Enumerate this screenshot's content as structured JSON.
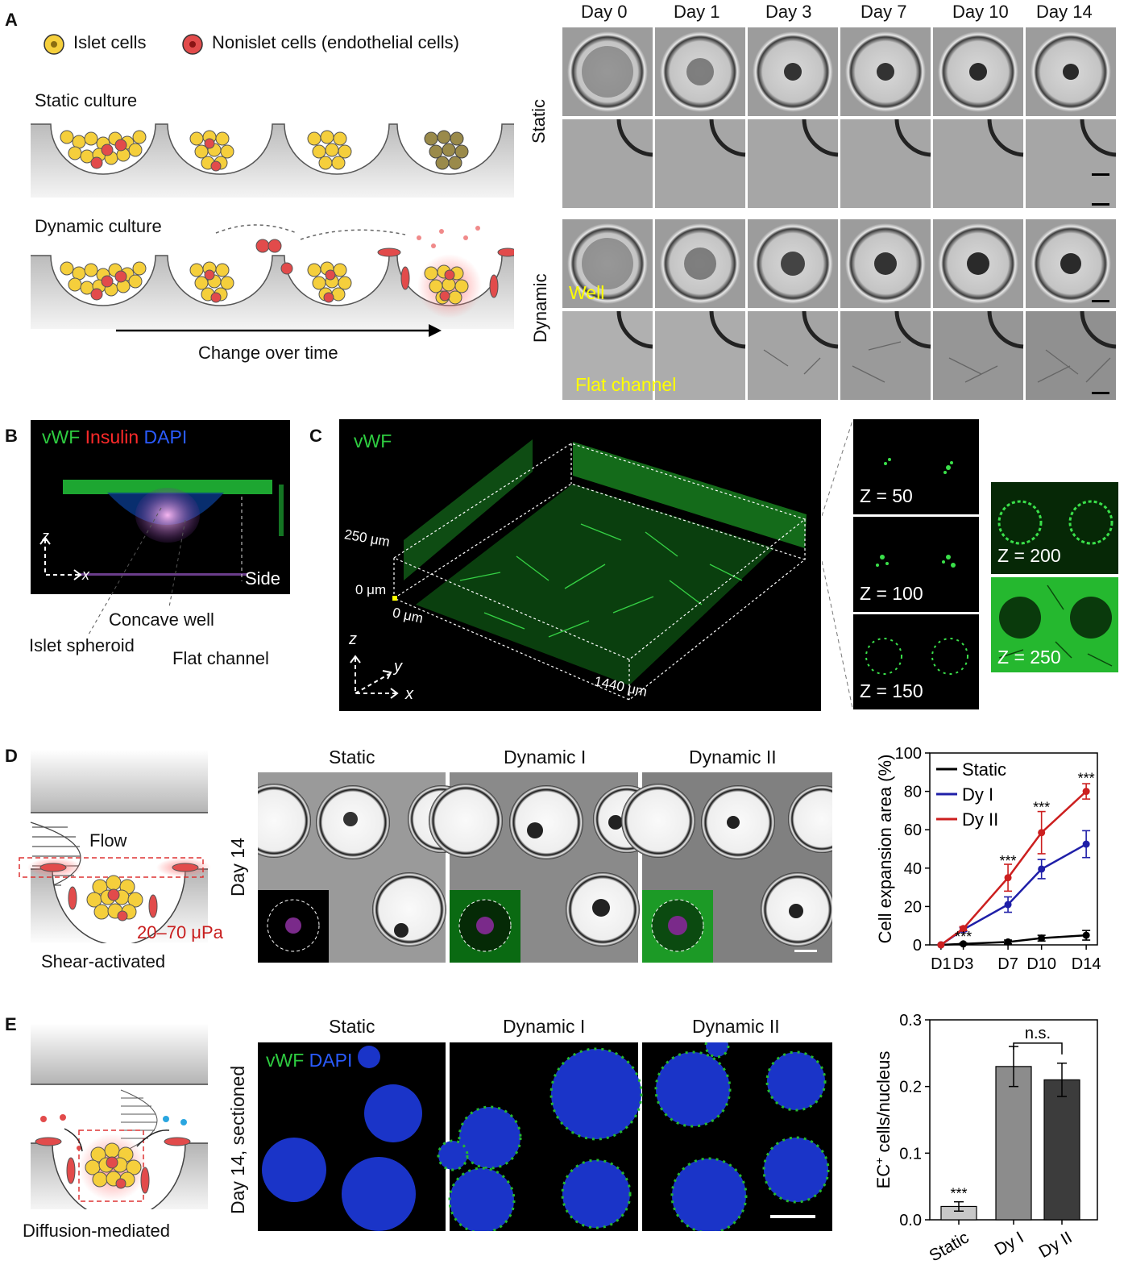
{
  "panels": {
    "A": {
      "label": "A",
      "legend": {
        "islet": "Islet cells",
        "nonislet": "Nonislet cells (endothelial cells)"
      },
      "static_title": "Static culture",
      "dynamic_title": "Dynamic culture",
      "arrow_label": "Change over time",
      "days": [
        "Day 0",
        "Day 1",
        "Day 3",
        "Day 7",
        "Day 10",
        "Day 14"
      ],
      "row_labels": {
        "static": "Static",
        "dynamic": "Dynamic"
      },
      "well_label": "Well",
      "flat_label": "Flat channel"
    },
    "B": {
      "label": "B",
      "stain": {
        "vwf": "vWF",
        "insulin": "Insulin",
        "dapi": "DAPI"
      },
      "axis_z": "z",
      "axis_x": "x",
      "side": "Side",
      "annotations": {
        "concave": "Concave well",
        "spheroid": "Islet spheroid",
        "flat": "Flat channel"
      }
    },
    "C": {
      "label": "C",
      "stain": "vWF",
      "labels": {
        "z250": "250 μm",
        "z0": "0 μm",
        "x0": "0 μm",
        "x1440": "1440 μm"
      },
      "axes": {
        "z": "z",
        "y": "y",
        "x": "x"
      },
      "slices": [
        "Z = 50",
        "Z = 100",
        "Z = 150",
        "Z = 200",
        "Z = 250"
      ]
    },
    "D": {
      "label": "D",
      "flow": "Flow",
      "shear": "20–70 μPa",
      "caption": "Shear-activated",
      "conditions": [
        "Static",
        "Dynamic I",
        "Dynamic II"
      ],
      "row_label": "Day 14"
    },
    "E": {
      "label": "E",
      "caption": "Diffusion-mediated",
      "conditions": [
        "Static",
        "Dynamic I",
        "Dynamic II"
      ],
      "row_label": "Day 14, sectioned",
      "stain": {
        "vwf": "vWF",
        "dapi": "DAPI"
      }
    }
  },
  "chart_data": [
    {
      "type": "line",
      "ylabel": "Cell expansion area (%)",
      "ylim": [
        0,
        100
      ],
      "yticks": [
        0,
        20,
        40,
        60,
        80,
        100
      ],
      "x": [
        1,
        3,
        7,
        10,
        14
      ],
      "xticklabels": [
        "D1",
        "D3",
        "D7",
        "D10",
        "D14"
      ],
      "series": [
        {
          "name": "Static",
          "color": "#000000",
          "values": [
            0,
            0.5,
            1.5,
            3.5,
            5
          ],
          "err": [
            0,
            0.5,
            1,
            1.5,
            2.5
          ]
        },
        {
          "name": "Dy I",
          "color": "#1f1fa8",
          "values": [
            0,
            8,
            21,
            39.5,
            52.5
          ],
          "err": [
            0,
            1,
            4,
            5,
            7
          ]
        },
        {
          "name": "Dy II",
          "color": "#cc1f1f",
          "values": [
            0,
            8.5,
            35,
            58.5,
            80
          ],
          "err": [
            0,
            1,
            7,
            11,
            4
          ]
        }
      ],
      "annotations": [
        "***",
        "***",
        "***",
        "***"
      ],
      "legend": "top-left"
    },
    {
      "type": "bar",
      "ylabel_main": "EC",
      "ylabel_sup": "+",
      "ylabel_rest": " cells/nucleus",
      "ylim": [
        0,
        0.3
      ],
      "yticks": [
        "0.0",
        "0.1",
        "0.2",
        "0.3"
      ],
      "categories": [
        "Static",
        "Dy I",
        "Dy II"
      ],
      "values": [
        0.02,
        0.23,
        0.21
      ],
      "err": [
        0.007,
        0.03,
        0.025
      ],
      "colors": [
        "#c8c8c8",
        "#8c8c8c",
        "#3c3c3c"
      ],
      "annotations": {
        "static": "***",
        "ns": "n.s."
      }
    }
  ]
}
